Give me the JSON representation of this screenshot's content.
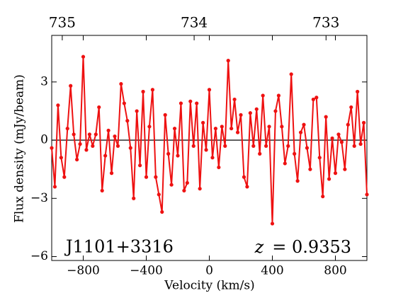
{
  "chart_data": {
    "type": "line",
    "xlabel": "Velocity (km/s)",
    "ylabel": "Flux density (mJy/beam)",
    "source_name": "J1101+3316",
    "redshift_symbol": "z",
    "redshift_text": "= 0.9353",
    "color": "#ee1111",
    "zero_line": true,
    "xlim": [
      -1000,
      1000
    ],
    "ylim": [
      -6.2,
      5.4
    ],
    "xticks": [
      {
        "value": -800,
        "label": "−800"
      },
      {
        "value": -400,
        "label": "−400"
      },
      0,
      400,
      800
    ],
    "yticks": [
      {
        "value": -6,
        "label": "−6"
      },
      {
        "value": -3,
        "label": "−3"
      },
      0,
      3
    ],
    "top_xlim": [
      735.08,
      732.69
    ],
    "top_xticks": [
      735,
      734,
      733
    ],
    "x": [
      -1000,
      -980,
      -960,
      -940,
      -920,
      -900,
      -880,
      -860,
      -840,
      -820,
      -800,
      -780,
      -760,
      -740,
      -720,
      -700,
      -680,
      -660,
      -640,
      -620,
      -600,
      -580,
      -560,
      -540,
      -520,
      -500,
      -480,
      -460,
      -440,
      -420,
      -400,
      -380,
      -360,
      -340,
      -320,
      -300,
      -280,
      -260,
      -240,
      -220,
      -200,
      -180,
      -160,
      -140,
      -120,
      -100,
      -80,
      -60,
      -40,
      -20,
      0,
      20,
      40,
      60,
      80,
      100,
      120,
      140,
      160,
      180,
      200,
      220,
      240,
      260,
      280,
      300,
      320,
      340,
      360,
      380,
      400,
      420,
      440,
      460,
      480,
      500,
      520,
      540,
      560,
      580,
      600,
      620,
      640,
      660,
      680,
      700,
      720,
      740,
      760,
      780,
      800,
      820,
      840,
      860,
      880,
      900,
      920,
      940,
      960,
      980,
      1000
    ],
    "values": [
      -0.4,
      -2.4,
      1.8,
      -0.9,
      -1.9,
      0.6,
      2.8,
      0.3,
      -1.0,
      -0.2,
      4.3,
      -0.5,
      0.3,
      -0.3,
      0.3,
      1.7,
      -2.6,
      -0.8,
      0.5,
      -1.7,
      0.2,
      -0.3,
      2.9,
      1.9,
      1.0,
      -0.4,
      -3.0,
      1.5,
      -1.3,
      2.5,
      -1.9,
      0.7,
      2.6,
      -1.9,
      -2.8,
      -3.7,
      1.3,
      -0.7,
      -2.3,
      0.6,
      -0.8,
      1.9,
      -2.6,
      -2.2,
      2.0,
      -0.3,
      1.9,
      -2.5,
      0.9,
      -0.5,
      2.6,
      -0.9,
      0.6,
      -1.4,
      0.7,
      -0.3,
      4.1,
      0.6,
      2.1,
      0.4,
      1.3,
      -1.9,
      -2.4,
      1.4,
      -0.3,
      1.6,
      -0.7,
      2.3,
      -0.3,
      0.7,
      -4.3,
      1.5,
      2.3,
      0.7,
      -1.2,
      -0.3,
      3.4,
      -0.7,
      -2.1,
      0.4,
      0.8,
      -0.4,
      -1.5,
      2.1,
      2.2,
      -0.9,
      -2.9,
      1.2,
      -2.0,
      0.1,
      -1.7,
      0.3,
      -0.1,
      -1.5,
      0.8,
      1.7,
      -0.3,
      2.5,
      -0.2,
      0.9,
      -2.8
    ]
  }
}
